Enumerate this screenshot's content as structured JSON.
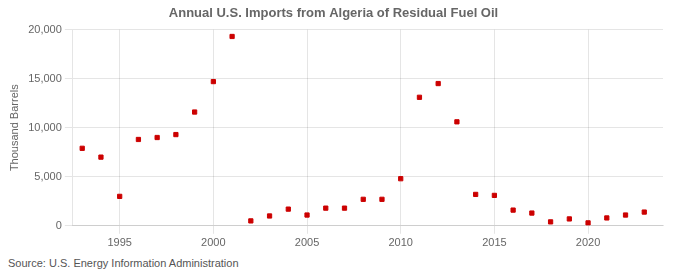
{
  "chart_data": {
    "type": "scatter",
    "title": "Annual U.S. Imports from Algeria of Residual Fuel Oil",
    "ylabel": "Thousand Barrels",
    "annotations": [
      "Source: U.S. Energy Information Administration"
    ],
    "x": [
      1993,
      1994,
      1995,
      1996,
      1997,
      1998,
      1999,
      2000,
      2001,
      2002,
      2003,
      2004,
      2005,
      2006,
      2007,
      2008,
      2009,
      2010,
      2011,
      2012,
      2013,
      2014,
      2015,
      2016,
      2017,
      2018,
      2019,
      2020,
      2021,
      2022,
      2023
    ],
    "values": [
      7900,
      7000,
      3000,
      8800,
      9000,
      9300,
      11600,
      14700,
      19300,
      500,
      1000,
      1700,
      1100,
      1800,
      1800,
      2700,
      2700,
      4800,
      13100,
      14500,
      10600,
      3200,
      3100,
      1600,
      1300,
      400,
      700,
      300,
      800,
      1100,
      1400
    ],
    "color": "#cc0000",
    "marker": "square",
    "xlim": [
      1992.5,
      2024
    ],
    "xticks": [
      1995,
      2000,
      2005,
      2010,
      2015,
      2020
    ],
    "ylim": [
      0,
      20000
    ],
    "yticks": [
      0,
      {
        "value": 5000,
        "label": "5,000"
      },
      {
        "value": 10000,
        "label": "10,000"
      },
      {
        "value": 15000,
        "label": "15,000"
      },
      {
        "value": 20000,
        "label": "20,000"
      }
    ],
    "grid": true
  }
}
